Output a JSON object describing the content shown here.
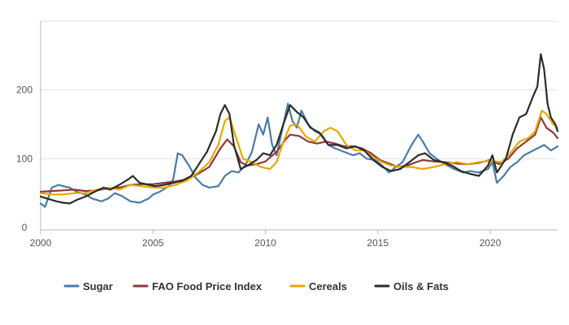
{
  "chart_data": {
    "type": "line",
    "title": "",
    "xlabel": "",
    "ylabel": "",
    "xlim": [
      2000,
      2023
    ],
    "ylim": [
      0,
      300
    ],
    "x_ticks": [
      "2000",
      "2005",
      "2010",
      "2015",
      "2020"
    ],
    "y_ticks": [
      "0",
      "100",
      "200"
    ],
    "grid": "horizontal",
    "legend_position": "bottom",
    "series": [
      {
        "name": "Sugar",
        "color": "#4a7ba7",
        "points": [
          [
            2000.0,
            35
          ],
          [
            2000.2,
            30
          ],
          [
            2000.5,
            58
          ],
          [
            2000.8,
            62
          ],
          [
            2001.0,
            60
          ],
          [
            2001.3,
            58
          ],
          [
            2001.6,
            52
          ],
          [
            2002.0,
            48
          ],
          [
            2002.3,
            42
          ],
          [
            2002.7,
            38
          ],
          [
            2003.0,
            42
          ],
          [
            2003.3,
            50
          ],
          [
            2003.6,
            46
          ],
          [
            2004.0,
            38
          ],
          [
            2004.4,
            36
          ],
          [
            2004.8,
            42
          ],
          [
            2005.0,
            48
          ],
          [
            2005.3,
            52
          ],
          [
            2005.7,
            60
          ],
          [
            2005.9,
            70
          ],
          [
            2006.1,
            108
          ],
          [
            2006.3,
            105
          ],
          [
            2006.6,
            90
          ],
          [
            2006.9,
            72
          ],
          [
            2007.2,
            62
          ],
          [
            2007.5,
            58
          ],
          [
            2007.9,
            60
          ],
          [
            2008.2,
            75
          ],
          [
            2008.5,
            82
          ],
          [
            2008.8,
            80
          ],
          [
            2009.1,
            90
          ],
          [
            2009.4,
            110
          ],
          [
            2009.7,
            150
          ],
          [
            2009.9,
            135
          ],
          [
            2010.1,
            160
          ],
          [
            2010.3,
            120
          ],
          [
            2010.5,
            105
          ],
          [
            2010.8,
            150
          ],
          [
            2011.0,
            180
          ],
          [
            2011.2,
            155
          ],
          [
            2011.4,
            145
          ],
          [
            2011.6,
            170
          ],
          [
            2011.9,
            150
          ],
          [
            2012.2,
            140
          ],
          [
            2012.5,
            135
          ],
          [
            2012.8,
            120
          ],
          [
            2013.1,
            115
          ],
          [
            2013.5,
            110
          ],
          [
            2013.9,
            105
          ],
          [
            2014.2,
            108
          ],
          [
            2014.5,
            100
          ],
          [
            2014.9,
            98
          ],
          [
            2015.2,
            90
          ],
          [
            2015.5,
            80
          ],
          [
            2015.8,
            88
          ],
          [
            2016.1,
            95
          ],
          [
            2016.5,
            120
          ],
          [
            2016.8,
            135
          ],
          [
            2017.0,
            125
          ],
          [
            2017.3,
            108
          ],
          [
            2017.7,
            98
          ],
          [
            2018.0,
            92
          ],
          [
            2018.4,
            85
          ],
          [
            2018.8,
            80
          ],
          [
            2019.1,
            82
          ],
          [
            2019.5,
            80
          ],
          [
            2019.9,
            85
          ],
          [
            2020.1,
            95
          ],
          [
            2020.3,
            65
          ],
          [
            2020.6,
            75
          ],
          [
            2020.9,
            88
          ],
          [
            2021.2,
            95
          ],
          [
            2021.5,
            105
          ],
          [
            2021.8,
            110
          ],
          [
            2022.1,
            115
          ],
          [
            2022.4,
            120
          ],
          [
            2022.7,
            112
          ],
          [
            2023.0,
            118
          ]
        ]
      },
      {
        "name": "FAO Food Price Index",
        "color": "#8b3a3a",
        "points": [
          [
            2000.0,
            52
          ],
          [
            2000.5,
            53
          ],
          [
            2001.0,
            54
          ],
          [
            2001.5,
            55
          ],
          [
            2002.0,
            53
          ],
          [
            2002.5,
            54
          ],
          [
            2003.0,
            57
          ],
          [
            2003.5,
            58
          ],
          [
            2004.0,
            62
          ],
          [
            2004.5,
            63
          ],
          [
            2005.0,
            63
          ],
          [
            2005.5,
            65
          ],
          [
            2006.0,
            67
          ],
          [
            2006.5,
            70
          ],
          [
            2007.0,
            78
          ],
          [
            2007.5,
            88
          ],
          [
            2008.0,
            115
          ],
          [
            2008.3,
            128
          ],
          [
            2008.6,
            118
          ],
          [
            2008.9,
            95
          ],
          [
            2009.2,
            90
          ],
          [
            2009.6,
            92
          ],
          [
            2010.0,
            96
          ],
          [
            2010.5,
            110
          ],
          [
            2010.9,
            128
          ],
          [
            2011.1,
            135
          ],
          [
            2011.5,
            133
          ],
          [
            2011.9,
            125
          ],
          [
            2012.3,
            122
          ],
          [
            2012.7,
            125
          ],
          [
            2013.1,
            122
          ],
          [
            2013.5,
            118
          ],
          [
            2013.9,
            118
          ],
          [
            2014.3,
            115
          ],
          [
            2014.7,
            108
          ],
          [
            2015.1,
            98
          ],
          [
            2015.5,
            93
          ],
          [
            2015.9,
            88
          ],
          [
            2016.3,
            90
          ],
          [
            2016.7,
            95
          ],
          [
            2017.0,
            98
          ],
          [
            2017.5,
            96
          ],
          [
            2018.0,
            95
          ],
          [
            2018.5,
            93
          ],
          [
            2019.0,
            92
          ],
          [
            2019.5,
            94
          ],
          [
            2020.0,
            98
          ],
          [
            2020.4,
            92
          ],
          [
            2020.8,
            100
          ],
          [
            2021.2,
            115
          ],
          [
            2021.6,
            125
          ],
          [
            2022.0,
            135
          ],
          [
            2022.25,
            160
          ],
          [
            2022.5,
            145
          ],
          [
            2022.8,
            138
          ],
          [
            2023.0,
            130
          ]
        ]
      },
      {
        "name": "Cereals",
        "color": "#e8a800",
        "points": [
          [
            2000.0,
            50
          ],
          [
            2000.5,
            48
          ],
          [
            2001.0,
            48
          ],
          [
            2001.5,
            50
          ],
          [
            2002.0,
            50
          ],
          [
            2002.5,
            55
          ],
          [
            2003.0,
            58
          ],
          [
            2003.5,
            55
          ],
          [
            2004.0,
            62
          ],
          [
            2004.5,
            60
          ],
          [
            2005.0,
            58
          ],
          [
            2005.5,
            58
          ],
          [
            2006.0,
            62
          ],
          [
            2006.5,
            68
          ],
          [
            2007.0,
            80
          ],
          [
            2007.5,
            95
          ],
          [
            2007.9,
            120
          ],
          [
            2008.2,
            155
          ],
          [
            2008.4,
            160
          ],
          [
            2008.7,
            130
          ],
          [
            2009.0,
            100
          ],
          [
            2009.4,
            95
          ],
          [
            2009.8,
            88
          ],
          [
            2010.2,
            85
          ],
          [
            2010.5,
            95
          ],
          [
            2010.8,
            125
          ],
          [
            2011.1,
            148
          ],
          [
            2011.4,
            150
          ],
          [
            2011.8,
            132
          ],
          [
            2012.2,
            125
          ],
          [
            2012.6,
            140
          ],
          [
            2012.9,
            145
          ],
          [
            2013.2,
            140
          ],
          [
            2013.6,
            120
          ],
          [
            2014.0,
            112
          ],
          [
            2014.4,
            112
          ],
          [
            2014.8,
            102
          ],
          [
            2015.2,
            95
          ],
          [
            2015.6,
            90
          ],
          [
            2016.0,
            88
          ],
          [
            2016.5,
            88
          ],
          [
            2017.0,
            85
          ],
          [
            2017.5,
            88
          ],
          [
            2018.0,
            92
          ],
          [
            2018.5,
            95
          ],
          [
            2019.0,
            92
          ],
          [
            2019.5,
            95
          ],
          [
            2020.0,
            97
          ],
          [
            2020.5,
            95
          ],
          [
            2020.9,
            108
          ],
          [
            2021.3,
            125
          ],
          [
            2021.7,
            130
          ],
          [
            2022.0,
            140
          ],
          [
            2022.3,
            170
          ],
          [
            2022.5,
            165
          ],
          [
            2022.8,
            150
          ],
          [
            2023.0,
            145
          ]
        ]
      },
      {
        "name": "Oils & Fats",
        "color": "#2b2b2b",
        "points": [
          [
            2000.0,
            45
          ],
          [
            2000.3,
            42
          ],
          [
            2000.7,
            38
          ],
          [
            2001.0,
            36
          ],
          [
            2001.3,
            35
          ],
          [
            2001.6,
            40
          ],
          [
            2002.0,
            45
          ],
          [
            2002.4,
            52
          ],
          [
            2002.8,
            58
          ],
          [
            2003.1,
            55
          ],
          [
            2003.5,
            62
          ],
          [
            2003.9,
            70
          ],
          [
            2004.1,
            75
          ],
          [
            2004.4,
            65
          ],
          [
            2004.8,
            62
          ],
          [
            2005.1,
            60
          ],
          [
            2005.5,
            62
          ],
          [
            2005.9,
            65
          ],
          [
            2006.3,
            68
          ],
          [
            2006.7,
            75
          ],
          [
            2007.0,
            90
          ],
          [
            2007.4,
            110
          ],
          [
            2007.8,
            140
          ],
          [
            2008.0,
            165
          ],
          [
            2008.2,
            178
          ],
          [
            2008.4,
            165
          ],
          [
            2008.6,
            120
          ],
          [
            2008.9,
            85
          ],
          [
            2009.2,
            90
          ],
          [
            2009.6,
            98
          ],
          [
            2009.9,
            108
          ],
          [
            2010.2,
            105
          ],
          [
            2010.5,
            120
          ],
          [
            2010.8,
            150
          ],
          [
            2011.1,
            178
          ],
          [
            2011.4,
            168
          ],
          [
            2011.7,
            160
          ],
          [
            2012.0,
            145
          ],
          [
            2012.4,
            138
          ],
          [
            2012.8,
            120
          ],
          [
            2013.2,
            120
          ],
          [
            2013.6,
            115
          ],
          [
            2014.0,
            118
          ],
          [
            2014.4,
            112
          ],
          [
            2014.8,
            98
          ],
          [
            2015.2,
            88
          ],
          [
            2015.6,
            82
          ],
          [
            2016.0,
            85
          ],
          [
            2016.4,
            95
          ],
          [
            2016.8,
            105
          ],
          [
            2017.1,
            108
          ],
          [
            2017.5,
            98
          ],
          [
            2017.9,
            95
          ],
          [
            2018.3,
            90
          ],
          [
            2018.7,
            82
          ],
          [
            2019.1,
            78
          ],
          [
            2019.5,
            75
          ],
          [
            2019.9,
            90
          ],
          [
            2020.1,
            105
          ],
          [
            2020.3,
            80
          ],
          [
            2020.7,
            100
          ],
          [
            2021.0,
            135
          ],
          [
            2021.3,
            160
          ],
          [
            2021.6,
            165
          ],
          [
            2021.9,
            190
          ],
          [
            2022.1,
            205
          ],
          [
            2022.25,
            252
          ],
          [
            2022.4,
            230
          ],
          [
            2022.55,
            180
          ],
          [
            2022.7,
            160
          ],
          [
            2022.9,
            150
          ],
          [
            2023.0,
            140
          ]
        ]
      }
    ]
  }
}
